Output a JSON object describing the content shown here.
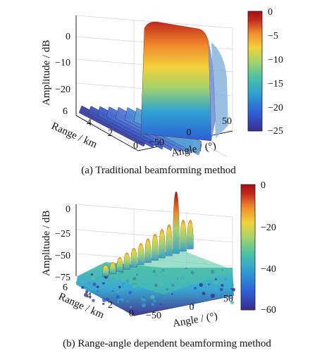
{
  "chart_data": [
    {
      "type": "surface",
      "caption": "(a) Traditional beamforming method",
      "zlabel": "Amplitude / dB",
      "xlabel": "Range / km",
      "ylabel": "Angle / (°)",
      "z_ticks": [
        "0",
        "−10",
        "−20"
      ],
      "range_ticks": [
        "6",
        "4",
        "2",
        "0"
      ],
      "angle_ticks": [
        "−50",
        "0",
        "50"
      ],
      "colorbar_ticks": [
        "0",
        "−5",
        "−10",
        "−15",
        "−20",
        "−25"
      ],
      "zlim": [
        -25,
        0
      ],
      "colorbar_range": [
        -25,
        0
      ],
      "range_km": [
        0,
        6
      ],
      "angle_deg": [
        -90,
        90
      ],
      "mainlobe": {
        "angle_deg": 25,
        "peak_db": 0,
        "range_extent_km": [
          0,
          6
        ]
      },
      "sidelobe_db": -20,
      "colormap": [
        "#3b2d8c",
        "#2c5fd6",
        "#2fa3d0",
        "#4cc2a4",
        "#a6d36a",
        "#f3d13a",
        "#f08a2c",
        "#c2281c",
        "#a50f15"
      ],
      "grid": true
    },
    {
      "type": "surface",
      "caption": "(b) Range-angle dependent beamforming method",
      "zlabel": "Amplitude / dB",
      "xlabel": "Range / km",
      "ylabel": "Angle / (°)",
      "z_ticks": [
        "0",
        "−25",
        "−50",
        "−75"
      ],
      "range_ticks": [
        "6",
        "4",
        "2",
        "0"
      ],
      "angle_ticks": [
        "−50",
        "0",
        "50"
      ],
      "colorbar_ticks": [
        "0",
        "−20",
        "−40",
        "−60"
      ],
      "zlim": [
        -75,
        0
      ],
      "colorbar_range": [
        -60,
        0
      ],
      "range_km": [
        0,
        6
      ],
      "angle_deg": [
        -90,
        90
      ],
      "mainlobe": {
        "angle_deg": 25,
        "range_km": 3,
        "peak_db": 0
      },
      "sidelobe_db": -40,
      "colormap": [
        "#3b2d8c",
        "#2c5fd6",
        "#2fa3d0",
        "#4cc2a4",
        "#a6d36a",
        "#f3d13a",
        "#f08a2c",
        "#c2281c",
        "#a50f15"
      ],
      "grid": true
    }
  ]
}
